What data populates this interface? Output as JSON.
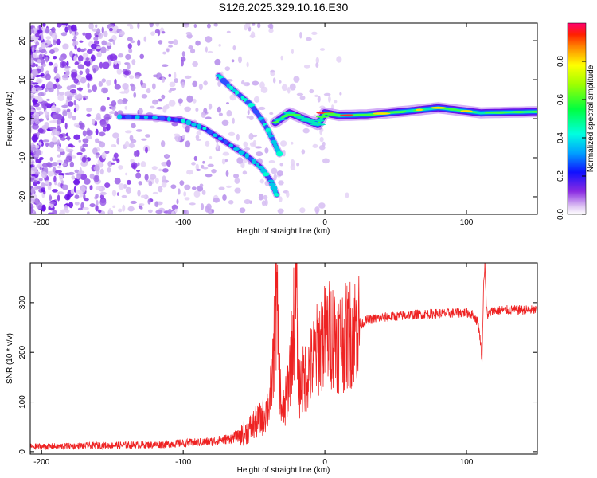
{
  "figure_title": "S126.2025.329.10.16.E30",
  "chart_data": [
    {
      "type": "heatmap",
      "title": "S126.2025.329.10.16.E30",
      "xlabel": "Height of straight line (km)",
      "ylabel": "Frequency (Hz)",
      "xlim": [
        -208,
        150
      ],
      "ylim": [
        -24.5,
        24.5
      ],
      "xticks": [
        -200,
        -100,
        0,
        100
      ],
      "yticks": [
        -20,
        -10,
        0,
        10,
        20
      ],
      "colorbar": {
        "label": "Normalized spectral amplitude",
        "range": [
          0.0,
          1.0
        ],
        "ticks": [
          0.0,
          0.2,
          0.4,
          0.6,
          0.8
        ],
        "tick_labels": [
          "0.0",
          "0.2",
          "0.4",
          "0.6",
          "0.8"
        ]
      },
      "features": [
        {
          "name": "lower descending branch",
          "x": [
            -145,
            -120,
            -100,
            -85,
            -70,
            -55,
            -45,
            -38,
            -34
          ],
          "y": [
            0.5,
            0.3,
            -0.5,
            -2.5,
            -6,
            -9.5,
            -12.5,
            -16,
            -19.5
          ]
        },
        {
          "name": "upper branch",
          "x": [
            -75,
            -68,
            -60,
            -52,
            -45,
            -40,
            -36,
            -32
          ],
          "y": [
            11,
            8.5,
            6,
            3.5,
            0,
            -3,
            -6,
            -9
          ]
        },
        {
          "name": "main ridge",
          "x": [
            -35,
            -25,
            -15,
            -5,
            0,
            10,
            30,
            60,
            80,
            110,
            150
          ],
          "y": [
            -1,
            1.5,
            0,
            -1.5,
            1.5,
            0.8,
            1.0,
            2.0,
            2.8,
            1.5,
            1.8
          ]
        }
      ]
    },
    {
      "type": "line",
      "title": "",
      "xlabel": "Height of straight line (km)",
      "ylabel": "SNR (10 * v/v)",
      "xlim": [
        -208,
        150
      ],
      "ylim": [
        -5,
        380
      ],
      "xticks": [
        -200,
        -100,
        0,
        100
      ],
      "yticks": [
        0,
        100,
        200,
        300
      ],
      "series": [
        {
          "name": "SNR",
          "color": "#ee2222",
          "x": [
            -208,
            -180,
            -150,
            -120,
            -100,
            -80,
            -70,
            -60,
            -55,
            -50,
            -45,
            -40,
            -38,
            -36,
            -35,
            -34,
            -33,
            -32,
            -31,
            -30,
            -28,
            -26,
            -24,
            -22,
            -21,
            -20,
            -19,
            -18,
            -16,
            -14,
            -12,
            -10,
            -8,
            -6,
            -4,
            -2,
            0,
            5,
            10,
            15,
            20,
            30,
            40,
            50,
            60,
            70,
            80,
            90,
            100,
            105,
            108,
            110,
            111,
            112,
            113,
            114,
            115,
            118,
            125,
            135,
            150
          ],
          "y": [
            10,
            11,
            13,
            14,
            17,
            20,
            25,
            32,
            40,
            55,
            65,
            90,
            120,
            200,
            270,
            290,
            230,
            150,
            100,
            80,
            90,
            140,
            180,
            260,
            300,
            320,
            200,
            130,
            140,
            150,
            160,
            170,
            185,
            200,
            215,
            225,
            230,
            240,
            225,
            230,
            245,
            265,
            270,
            272,
            275,
            277,
            278,
            279,
            280,
            275,
            260,
            220,
            180,
            330,
            380,
            290,
            275,
            282,
            285,
            285,
            285
          ]
        }
      ]
    }
  ]
}
